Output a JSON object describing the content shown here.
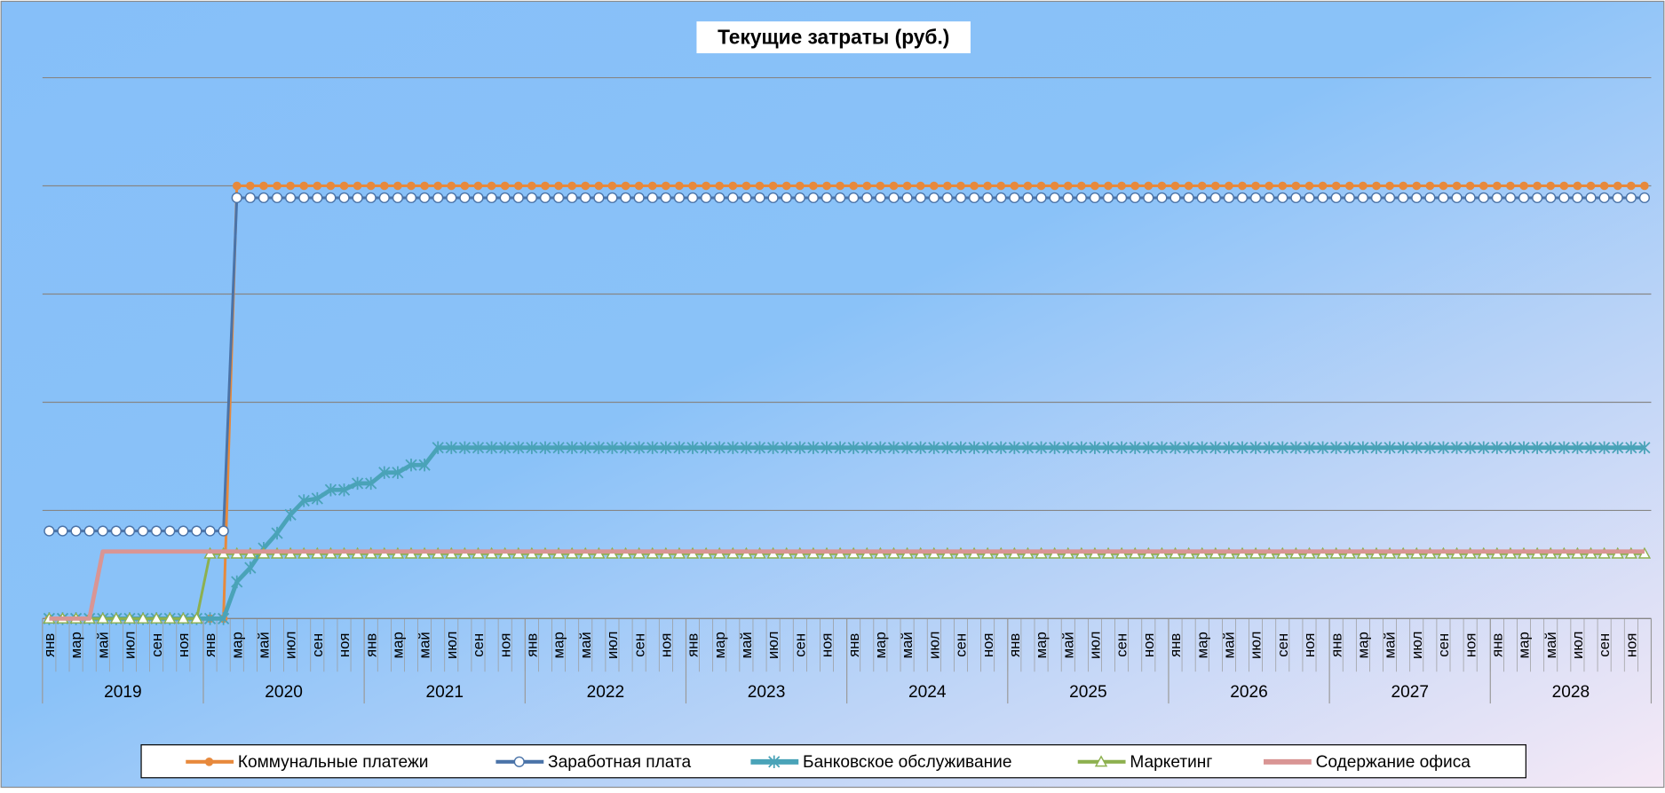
{
  "chart_data": {
    "type": "line",
    "title": "Текущие затраты (руб.)",
    "categories": [
      "янв",
      null,
      "мар",
      null,
      "май",
      null,
      "июл",
      null,
      "сен",
      null,
      "ноя",
      null,
      "янв",
      null,
      "мар",
      null,
      "май",
      null,
      "июл",
      null,
      "сен",
      null,
      "ноя",
      null,
      "янв",
      null,
      "мар",
      null,
      "май",
      null,
      "июл",
      null,
      "сен",
      null,
      "ноя",
      null,
      "янв",
      null,
      "мар",
      null,
      "май",
      null,
      "июл",
      null,
      "сен",
      null,
      "ноя",
      null,
      "янв",
      null,
      "мар",
      null,
      "май",
      null,
      "июл",
      null,
      "сен",
      null,
      "ноя",
      null,
      "янв",
      null,
      "мар",
      null,
      "май",
      null,
      "июл",
      null,
      "сен",
      null,
      "ноя",
      null,
      "янв",
      null,
      "мар",
      null,
      "май",
      null,
      "июл",
      null,
      "сен",
      null,
      "ноя",
      null,
      "янв",
      null,
      "мар",
      null,
      "май",
      null,
      "июл",
      null,
      "сен",
      null,
      "ноя",
      null,
      "янв",
      null,
      "мар",
      null,
      "май",
      null,
      "июл",
      null,
      "сен",
      null,
      "ноя",
      null,
      "янв",
      null,
      "мар",
      null,
      "май",
      null,
      "июл",
      null,
      "сен",
      null,
      "ноя",
      null
    ],
    "years": [
      "2019",
      "2020",
      "2021",
      "2022",
      "2023",
      "2024",
      "2025",
      "2026",
      "2027",
      "2028"
    ],
    "ylim": [
      0,
      5
    ],
    "yticks": [
      0,
      1,
      2,
      3,
      4,
      5
    ],
    "grid": true,
    "series": [
      {
        "name": "Коммунальные платежи",
        "color": "#e7893c",
        "marker": "dot",
        "values": [
          0,
          0,
          0,
          0,
          0,
          0,
          0,
          0,
          0,
          0,
          0,
          0,
          0,
          0,
          4,
          4,
          4,
          4,
          4,
          4,
          4,
          4,
          4,
          4,
          4,
          4,
          4,
          4,
          4,
          4,
          4,
          4,
          4,
          4,
          4,
          4,
          4,
          4,
          4,
          4,
          4,
          4,
          4,
          4,
          4,
          4,
          4,
          4,
          4,
          4,
          4,
          4,
          4,
          4,
          4,
          4,
          4,
          4,
          4,
          4,
          4,
          4,
          4,
          4,
          4,
          4,
          4,
          4,
          4,
          4,
          4,
          4,
          4,
          4,
          4,
          4,
          4,
          4,
          4,
          4,
          4,
          4,
          4,
          4,
          4,
          4,
          4,
          4,
          4,
          4,
          4,
          4,
          4,
          4,
          4,
          4,
          4,
          4,
          4,
          4,
          4,
          4,
          4,
          4,
          4,
          4,
          4,
          4,
          4,
          4,
          4,
          4,
          4,
          4,
          4,
          4,
          4,
          4,
          4,
          4
        ]
      },
      {
        "name": "Заработная плата",
        "color": "#4a73a8",
        "marker": "circle",
        "values": [
          0.81,
          0.81,
          0.81,
          0.81,
          0.81,
          0.81,
          0.81,
          0.81,
          0.81,
          0.81,
          0.81,
          0.81,
          0.81,
          0.81,
          3.89,
          3.89,
          3.89,
          3.89,
          3.89,
          3.89,
          3.89,
          3.89,
          3.89,
          3.89,
          3.89,
          3.89,
          3.89,
          3.89,
          3.89,
          3.89,
          3.89,
          3.89,
          3.89,
          3.89,
          3.89,
          3.89,
          3.89,
          3.89,
          3.89,
          3.89,
          3.89,
          3.89,
          3.89,
          3.89,
          3.89,
          3.89,
          3.89,
          3.89,
          3.89,
          3.89,
          3.89,
          3.89,
          3.89,
          3.89,
          3.89,
          3.89,
          3.89,
          3.89,
          3.89,
          3.89,
          3.89,
          3.89,
          3.89,
          3.89,
          3.89,
          3.89,
          3.89,
          3.89,
          3.89,
          3.89,
          3.89,
          3.89,
          3.89,
          3.89,
          3.89,
          3.89,
          3.89,
          3.89,
          3.89,
          3.89,
          3.89,
          3.89,
          3.89,
          3.89,
          3.89,
          3.89,
          3.89,
          3.89,
          3.89,
          3.89,
          3.89,
          3.89,
          3.89,
          3.89,
          3.89,
          3.89,
          3.89,
          3.89,
          3.89,
          3.89,
          3.89,
          3.89,
          3.89,
          3.89,
          3.89,
          3.89,
          3.89,
          3.89,
          3.89,
          3.89,
          3.89,
          3.89,
          3.89,
          3.89,
          3.89,
          3.89,
          3.89,
          3.89,
          3.89,
          3.89
        ]
      },
      {
        "name": "Банковское обслуживание",
        "color": "#4aa3b8",
        "marker": "star",
        "values": [
          0,
          0,
          0,
          0,
          0,
          0,
          0,
          0,
          0,
          0,
          0,
          0,
          0,
          0,
          0.34,
          0.47,
          0.65,
          0.79,
          0.96,
          1.09,
          1.11,
          1.19,
          1.19,
          1.25,
          1.25,
          1.35,
          1.35,
          1.42,
          1.42,
          1.58,
          1.58,
          1.58,
          1.58,
          1.58,
          1.58,
          1.58,
          1.58,
          1.58,
          1.58,
          1.58,
          1.58,
          1.58,
          1.58,
          1.58,
          1.58,
          1.58,
          1.58,
          1.58,
          1.58,
          1.58,
          1.58,
          1.58,
          1.58,
          1.58,
          1.58,
          1.58,
          1.58,
          1.58,
          1.58,
          1.58,
          1.58,
          1.58,
          1.58,
          1.58,
          1.58,
          1.58,
          1.58,
          1.58,
          1.58,
          1.58,
          1.58,
          1.58,
          1.58,
          1.58,
          1.58,
          1.58,
          1.58,
          1.58,
          1.58,
          1.58,
          1.58,
          1.58,
          1.58,
          1.58,
          1.58,
          1.58,
          1.58,
          1.58,
          1.58,
          1.58,
          1.58,
          1.58,
          1.58,
          1.58,
          1.58,
          1.58,
          1.58,
          1.58,
          1.58,
          1.58,
          1.58,
          1.58,
          1.58,
          1.58,
          1.58,
          1.58,
          1.58,
          1.58,
          1.58,
          1.58,
          1.58,
          1.58,
          1.58,
          1.58,
          1.58,
          1.58,
          1.58,
          1.58,
          1.58,
          1.58
        ]
      },
      {
        "name": "Маркетинг",
        "color": "#8db04f",
        "marker": "triangle",
        "values": [
          0,
          0,
          0,
          0,
          0,
          0,
          0,
          0,
          0,
          0,
          0,
          0,
          0.6,
          0.6,
          0.6,
          0.6,
          0.6,
          0.6,
          0.6,
          0.6,
          0.6,
          0.6,
          0.6,
          0.6,
          0.6,
          0.6,
          0.6,
          0.6,
          0.6,
          0.6,
          0.6,
          0.6,
          0.6,
          0.6,
          0.6,
          0.6,
          0.6,
          0.6,
          0.6,
          0.6,
          0.6,
          0.6,
          0.6,
          0.6,
          0.6,
          0.6,
          0.6,
          0.6,
          0.6,
          0.6,
          0.6,
          0.6,
          0.6,
          0.6,
          0.6,
          0.6,
          0.6,
          0.6,
          0.6,
          0.6,
          0.6,
          0.6,
          0.6,
          0.6,
          0.6,
          0.6,
          0.6,
          0.6,
          0.6,
          0.6,
          0.6,
          0.6,
          0.6,
          0.6,
          0.6,
          0.6,
          0.6,
          0.6,
          0.6,
          0.6,
          0.6,
          0.6,
          0.6,
          0.6,
          0.6,
          0.6,
          0.6,
          0.6,
          0.6,
          0.6,
          0.6,
          0.6,
          0.6,
          0.6,
          0.6,
          0.6,
          0.6,
          0.6,
          0.6,
          0.6,
          0.6,
          0.6,
          0.6,
          0.6,
          0.6,
          0.6,
          0.6,
          0.6,
          0.6,
          0.6,
          0.6,
          0.6,
          0.6,
          0.6,
          0.6,
          0.6,
          0.6,
          0.6,
          0.6,
          0.6
        ]
      },
      {
        "name": "Содержание офиса",
        "color": "#d99594",
        "marker": "none",
        "values": [
          0,
          0,
          0,
          0,
          0.62,
          0.62,
          0.62,
          0.62,
          0.62,
          0.62,
          0.62,
          0.62,
          0.62,
          0.62,
          0.62,
          0.62,
          0.62,
          0.62,
          0.62,
          0.62,
          0.62,
          0.62,
          0.62,
          0.62,
          0.62,
          0.62,
          0.62,
          0.62,
          0.62,
          0.62,
          0.62,
          0.62,
          0.62,
          0.62,
          0.62,
          0.62,
          0.62,
          0.62,
          0.62,
          0.62,
          0.62,
          0.62,
          0.62,
          0.62,
          0.62,
          0.62,
          0.62,
          0.62,
          0.62,
          0.62,
          0.62,
          0.62,
          0.62,
          0.62,
          0.62,
          0.62,
          0.62,
          0.62,
          0.62,
          0.62,
          0.62,
          0.62,
          0.62,
          0.62,
          0.62,
          0.62,
          0.62,
          0.62,
          0.62,
          0.62,
          0.62,
          0.62,
          0.62,
          0.62,
          0.62,
          0.62,
          0.62,
          0.62,
          0.62,
          0.62,
          0.62,
          0.62,
          0.62,
          0.62,
          0.62,
          0.62,
          0.62,
          0.62,
          0.62,
          0.62,
          0.62,
          0.62,
          0.62,
          0.62,
          0.62,
          0.62,
          0.62,
          0.62,
          0.62,
          0.62,
          0.62,
          0.62,
          0.62,
          0.62,
          0.62,
          0.62,
          0.62,
          0.62,
          0.62,
          0.62,
          0.62,
          0.62,
          0.62,
          0.62,
          0.62,
          0.62,
          0.62,
          0.62,
          0.62,
          0.62
        ]
      }
    ]
  }
}
